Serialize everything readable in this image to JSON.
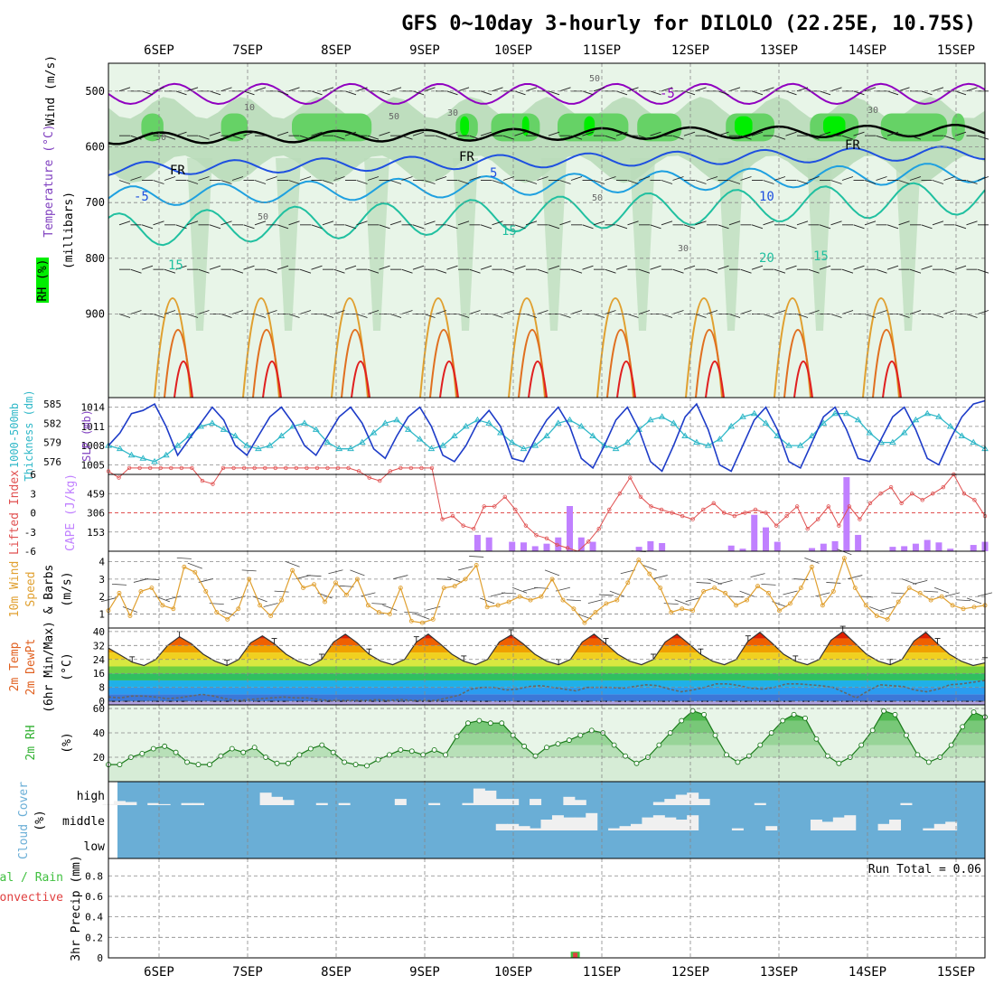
{
  "title": "GFS 0~10day 3-hourly for DILOLO (22.25E, 10.75S)",
  "colors": {
    "rh_light": "#e8f5e8",
    "rh_mid": "#b9dcb9",
    "rh_dark": "#8fcf8f",
    "rh_green": "#66d266",
    "rh_bright": "#00ee00",
    "temp_purple": "#9000c0",
    "temp_blue": "#1e50e0",
    "temp_cyan": "#1ea0e0",
    "temp_teal": "#20c0a0",
    "temp_gold": "#e0a030",
    "temp_orange": "#e07020",
    "temp_red": "#e02020",
    "slp_line": "#1e3cc8",
    "thick_line": "#30b8c8",
    "cape_bar": "#c080ff",
    "li_line": "#e05050",
    "wind_line": "#e0a030",
    "cloud_bg": "#6aaed6",
    "cloud_bar": "#f0f0f0",
    "precip_total": "#40c040",
    "precip_conv": "#e04040"
  },
  "x_axis": {
    "ticks": [
      "6SEP",
      "7SEP",
      "8SEP",
      "9SEP",
      "10SEP",
      "11SEP",
      "12SEP",
      "13SEP",
      "14SEP",
      "15SEP"
    ],
    "start_offset_days": -0.47,
    "end_offset_days": 9.14
  },
  "chart_data": [
    {
      "type": "heatmap",
      "panel": "upper-air",
      "ylabel_parts": [
        "Wind (m/s)",
        "Temperature (°C)",
        "RH (%)",
        "(millibars)"
      ],
      "yticks": [
        500,
        600,
        700,
        800,
        900
      ],
      "ylim": [
        1050,
        450
      ],
      "temperature_contour_labels": [
        "-5",
        "5",
        "-5",
        "10",
        "15",
        "15",
        "20",
        "15",
        "FR",
        "FR",
        "FR"
      ],
      "rh_contour_labels": [
        "10",
        "30",
        "50",
        "30",
        "50",
        "30",
        "50",
        "50",
        "30"
      ]
    },
    {
      "type": "line",
      "panel": "slp-thickness",
      "ylabel_left": [
        "1000-500mb",
        "Thickness (dm)"
      ],
      "ylabel_right": "SLP (mb)",
      "yticks_left": [
        576,
        579,
        582,
        585
      ],
      "yticks_right": [
        1005,
        1008,
        1011,
        1014
      ],
      "ylim_right": [
        1003.5,
        1015.5
      ],
      "series": [
        {
          "name": "SLP",
          "values": [
            1008,
            1010,
            1013,
            1013.5,
            1014.5,
            1011,
            1006.5,
            1009,
            1011.5,
            1014,
            1012,
            1008,
            1006.5,
            1009.5,
            1012.5,
            1014,
            1011.5,
            1008,
            1006.5,
            1009.5,
            1012.5,
            1014,
            1011.5,
            1007.5,
            1006,
            1009.5,
            1012.5,
            1014,
            1011,
            1006.5,
            1005.5,
            1008,
            1011.5,
            1013.5,
            1011,
            1006,
            1005.5,
            1009,
            1012,
            1014,
            1011,
            1006,
            1004.5,
            1008,
            1012,
            1014,
            1010.5,
            1005.5,
            1004,
            1008,
            1012.5,
            1014.5,
            1010.5,
            1005,
            1004,
            1008,
            1012,
            1014,
            1010.5,
            1005.5,
            1004.5,
            1008.5,
            1012.5,
            1014,
            1010.5,
            1006,
            1005.5,
            1009,
            1012.5,
            1014,
            1010.5,
            1006,
            1005,
            1009,
            1012.5,
            1014.5,
            1015
          ]
        },
        {
          "name": "Thickness",
          "values": [
            578.5,
            578,
            577,
            576.5,
            576,
            577,
            578.5,
            580,
            581.5,
            582,
            581,
            580,
            578.5,
            578,
            578.5,
            580,
            581.5,
            582,
            581,
            579,
            578,
            578,
            579,
            580.5,
            582,
            582.5,
            581,
            579.5,
            578,
            578.5,
            580,
            581.5,
            582.5,
            582,
            580.5,
            579,
            578,
            578.5,
            580,
            582,
            582.5,
            581.5,
            580,
            578.5,
            578,
            579,
            581,
            582.5,
            583,
            582,
            580,
            579,
            578.5,
            579.5,
            581.5,
            583,
            583.5,
            582,
            580,
            578.5,
            578.5,
            580,
            582,
            583.5,
            583.5,
            582.5,
            580.5,
            579,
            579,
            580.5,
            582.5,
            583.5,
            583,
            581.5,
            580,
            579,
            578
          ]
        }
      ]
    },
    {
      "type": "bar",
      "panel": "cape-lifted-index",
      "ylabel_left": "Lifted Index",
      "ylabel_right": "CAPE (J/kg)",
      "yticks_left": [
        "6",
        "3",
        "0",
        "-3",
        "-6"
      ],
      "yticks_right": [
        153,
        306,
        459
      ],
      "ylim_cape": [
        0,
        612
      ],
      "series": [
        {
          "name": "CAPE",
          "values": [
            0,
            0,
            0,
            0,
            0,
            0,
            0,
            0,
            0,
            0,
            0,
            0,
            0,
            0,
            0,
            0,
            0,
            0,
            0,
            0,
            0,
            0,
            0,
            0,
            0,
            0,
            0,
            0,
            0,
            0,
            0,
            0,
            130,
            110,
            0,
            75,
            70,
            40,
            60,
            110,
            360,
            110,
            75,
            0,
            0,
            0,
            35,
            80,
            65,
            0,
            0,
            0,
            0,
            0,
            45,
            20,
            290,
            190,
            75,
            0,
            0,
            25,
            60,
            80,
            590,
            130,
            0,
            0,
            35,
            40,
            60,
            90,
            70,
            20,
            0,
            50,
            75
          ]
        },
        {
          "name": "Lifted Index",
          "values": [
            6.5,
            5.5,
            7,
            7,
            7,
            7,
            7,
            7,
            7,
            5,
            4.5,
            7,
            7,
            7,
            7,
            7,
            7,
            7,
            7,
            7,
            7,
            7,
            7,
            7,
            6.5,
            5.5,
            5,
            6.5,
            7,
            7,
            7,
            7,
            -1,
            -0.5,
            -2,
            -2.5,
            1,
            1,
            2.5,
            0.5,
            -2,
            -3.5,
            -4,
            -5,
            -5.5,
            -6,
            -4.5,
            -2.5,
            0.5,
            3,
            5.5,
            2.5,
            1,
            0.5,
            0,
            -0.5,
            -1,
            0.5,
            1.5,
            0,
            -0.5,
            0,
            0.5,
            0,
            -2,
            -0.5,
            1,
            -2.5,
            -1,
            1,
            -2,
            1,
            -1,
            1.5,
            3,
            4,
            1.5,
            3,
            2,
            3,
            4,
            6,
            3,
            2,
            -0.5
          ]
        }
      ]
    },
    {
      "type": "line",
      "panel": "10m-wind",
      "ylabel_parts": [
        "10m Wind",
        "Speed",
        "& Barbs",
        "(m/s)"
      ],
      "yticks": [
        1,
        2,
        3,
        4
      ],
      "ylim": [
        0.2,
        4.6
      ],
      "series": [
        {
          "name": "Wind Speed",
          "values": [
            1.2,
            2.2,
            0.9,
            2.3,
            2.5,
            1.5,
            1.3,
            3.7,
            3.4,
            2.3,
            1.1,
            0.7,
            1.3,
            3,
            1.5,
            0.9,
            1.8,
            3.5,
            2.5,
            2.7,
            1.7,
            2.8,
            2.1,
            3,
            1.5,
            1.1,
            1,
            2.5,
            0.6,
            0.5,
            0.7,
            2.5,
            2.6,
            3,
            3.8,
            1.4,
            1.5,
            1.7,
            2,
            1.8,
            2,
            3,
            1.8,
            1.3,
            0.5,
            1.1,
            1.6,
            1.8,
            2.8,
            4.1,
            3.3,
            2.5,
            1.1,
            1.3,
            1.2,
            2.3,
            2.5,
            2.2,
            1.5,
            1.8,
            2.6,
            2.2,
            1.2,
            1.6,
            2.5,
            3.7,
            1.5,
            2.3,
            4.2,
            2.5,
            1.5,
            0.9,
            0.7,
            1.7,
            2.5,
            2.2,
            1.8,
            2,
            1.5,
            1.3,
            1.4,
            1.5
          ]
        }
      ]
    },
    {
      "type": "area",
      "panel": "2m-temperature",
      "ylabel_parts": [
        "2m Temp",
        "2m DewPt",
        "(6hr Min/Max)",
        "(°C)"
      ],
      "yticks": [
        0,
        8,
        16,
        24,
        32,
        40
      ],
      "ylim": [
        -2,
        42
      ],
      "series": [
        {
          "name": "2m Temp",
          "values": [
            30.5,
            26.5,
            22.5,
            20.5,
            24,
            32,
            37,
            33,
            27,
            23,
            20.5,
            24,
            33.5,
            37.5,
            33,
            27,
            23,
            20.5,
            24,
            34,
            38.5,
            33.5,
            27,
            23,
            21,
            24,
            34,
            38.5,
            33,
            27,
            23,
            21,
            24,
            34,
            38,
            33,
            27,
            23,
            21,
            24,
            34,
            38.5,
            33,
            27,
            23,
            21,
            24,
            34,
            38.5,
            33,
            27,
            23,
            21,
            24,
            34.5,
            39.5,
            33.5,
            27,
            23,
            21,
            24,
            35,
            40,
            33.5,
            27,
            23,
            21,
            24,
            34.5,
            39.5,
            33,
            27,
            23,
            20.5,
            22
          ]
        },
        {
          "name": "2m DewPt",
          "values": [
            2.5,
            2,
            3,
            3,
            2.5,
            1.5,
            2,
            3,
            4,
            3,
            1.5,
            0.5,
            1,
            1.5,
            2,
            2.5,
            2,
            2,
            1,
            0.5,
            0.5,
            0.5,
            0.5,
            1,
            0.5,
            1,
            0.5,
            0.5,
            0.5,
            2,
            3.5,
            7,
            8,
            8,
            6.5,
            7,
            8.5,
            9,
            8,
            7,
            6,
            8,
            8,
            8,
            7.5,
            8.5,
            9.5,
            9,
            7,
            5.5,
            6.5,
            8,
            10,
            10,
            9,
            7.5,
            7,
            8,
            10,
            10,
            9.5,
            9,
            8,
            5,
            2,
            6,
            9.5,
            9,
            8.5,
            6.5,
            5.5,
            7,
            9.5,
            10,
            11,
            12
          ]
        }
      ]
    },
    {
      "type": "area",
      "panel": "2m-rh",
      "ylabel_parts": [
        "2m RH",
        "(%)"
      ],
      "yticks": [
        20,
        40,
        60
      ],
      "ylim": [
        0,
        63
      ],
      "series": [
        {
          "name": "2m RH",
          "values": [
            14,
            14,
            20,
            23,
            27,
            29,
            24,
            16,
            14,
            14,
            21,
            27,
            24,
            28,
            20,
            15,
            15,
            22,
            27,
            30,
            24,
            16,
            14,
            13,
            18,
            22,
            26,
            25,
            22,
            26,
            22,
            37,
            48,
            50,
            48,
            48,
            38,
            29,
            21,
            28,
            31,
            34,
            38,
            42,
            40,
            30,
            21,
            15,
            20,
            30,
            40,
            50,
            58,
            55,
            38,
            22,
            16,
            21,
            30,
            40,
            50,
            55,
            52,
            35,
            21,
            15,
            20,
            30,
            42,
            58,
            55,
            38,
            22,
            16,
            20,
            30,
            45,
            57,
            53
          ]
        }
      ]
    },
    {
      "type": "bar",
      "panel": "cloud-cover",
      "ylabel_parts": [
        "Cloud Cover",
        "(%)"
      ],
      "yticks": [
        "high",
        "middle",
        "low"
      ],
      "series": [
        {
          "name": "high",
          "values": [
            5,
            20,
            15,
            0,
            10,
            5,
            0,
            10,
            10,
            0,
            0,
            0,
            0,
            0,
            60,
            40,
            25,
            0,
            0,
            10,
            0,
            10,
            0,
            0,
            0,
            0,
            30,
            0,
            0,
            10,
            0,
            0,
            10,
            80,
            70,
            30,
            30,
            0,
            30,
            0,
            0,
            40,
            25,
            0,
            0,
            0,
            0,
            0,
            0,
            15,
            30,
            50,
            60,
            30,
            0,
            0,
            0,
            0,
            10,
            0,
            0,
            0,
            0,
            0,
            0,
            0,
            0,
            0,
            0,
            0,
            0,
            10,
            0,
            0,
            0,
            0,
            0,
            0,
            0
          ]
        },
        {
          "name": "middle",
          "values": [
            0,
            0,
            0,
            0,
            0,
            0,
            0,
            0,
            0,
            0,
            0,
            0,
            0,
            0,
            0,
            0,
            0,
            0,
            0,
            0,
            0,
            0,
            0,
            0,
            0,
            0,
            0,
            0,
            0,
            0,
            0,
            0,
            0,
            0,
            0,
            30,
            30,
            20,
            10,
            50,
            70,
            60,
            60,
            80,
            0,
            10,
            20,
            30,
            60,
            70,
            60,
            50,
            70,
            0,
            0,
            0,
            10,
            0,
            0,
            20,
            0,
            0,
            0,
            50,
            40,
            60,
            70,
            0,
            0,
            30,
            50,
            0,
            0,
            10,
            30,
            40,
            0,
            0,
            0
          ]
        },
        {
          "name": "low",
          "values": [
            0,
            0,
            0,
            0,
            0,
            0,
            0,
            0,
            0,
            0,
            0,
            0,
            0,
            0,
            0,
            0,
            0,
            0,
            0,
            0,
            0,
            0,
            0,
            0,
            0,
            0,
            0,
            0,
            0,
            0,
            0,
            0,
            0,
            0,
            0,
            0,
            0,
            0,
            0,
            0,
            0,
            0,
            0,
            0,
            0,
            0,
            0,
            0,
            0,
            0,
            0,
            0,
            0,
            0,
            0,
            0,
            0,
            0,
            0,
            0,
            0,
            0,
            0,
            0,
            0,
            0,
            0,
            0,
            0,
            0,
            0,
            0,
            0,
            0,
            0,
            0,
            0
          ]
        }
      ]
    },
    {
      "type": "bar",
      "panel": "precipitation",
      "ylabel_parts": [
        "Total / Rain",
        "Convective",
        "3hr Precip (mm)"
      ],
      "yticks": [
        0,
        0.2,
        0.4,
        0.6,
        0.8
      ],
      "ylim": [
        0,
        0.97
      ],
      "run_total": "Run Total = 0.06",
      "series": [
        {
          "name": "Total",
          "bars": [
            {
              "day": 4.7,
              "value": 0.06
            }
          ]
        },
        {
          "name": "Convective",
          "bars": [
            {
              "day": 4.7,
              "value": 0.05
            }
          ]
        }
      ]
    }
  ]
}
